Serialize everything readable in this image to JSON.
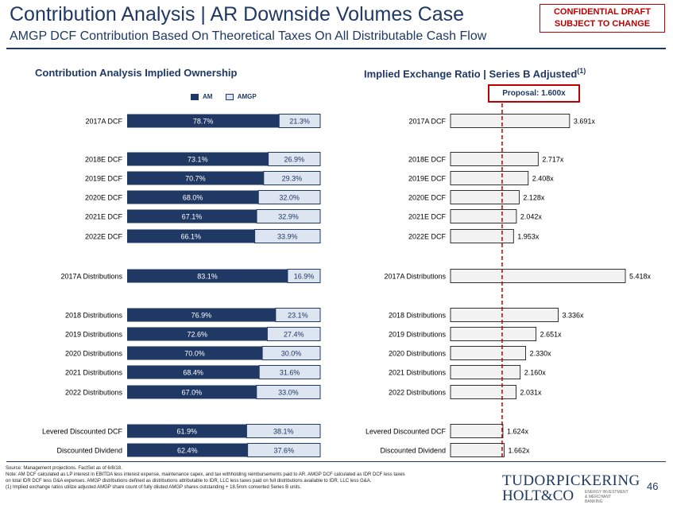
{
  "header": {
    "title": "Contribution Analysis | AR Downside Volumes Case",
    "subtitle": "AMGP DCF Contribution Based On Theoretical Taxes On All Distributable Cash Flow",
    "confidential_line1": "CONFIDENTIAL DRAFT",
    "confidential_line2": "SUBJECT TO CHANGE"
  },
  "left_section_title": "Contribution Analysis Implied Ownership",
  "right_section_title": "Implied Exchange Ratio | Series B Adjusted",
  "right_section_footnote_marker": "(1)",
  "proposal_label": "Proposal: 1.600x",
  "legend": {
    "am": "AM",
    "amgp": "AMGP"
  },
  "colors": {
    "navy": "#1f3864",
    "light": "#dde5f0",
    "grey_bar": "#f2f2f2",
    "red": "#c00000"
  },
  "chart_data": [
    {
      "type": "bar",
      "stacked": true,
      "orientation": "horizontal",
      "title": "Contribution Analysis Implied Ownership",
      "categories": [
        "2017A DCF",
        "2018E DCF",
        "2019E DCF",
        "2020E DCF",
        "2021E DCF",
        "2022E DCF",
        "2017A Distributions",
        "2018 Distributions",
        "2019 Distributions",
        "2020 Distributions",
        "2021 Distributions",
        "2022 Distributions",
        "Levered Discounted DCF",
        "Discounted Dividend"
      ],
      "series": [
        {
          "name": "AM",
          "values": [
            78.7,
            73.1,
            70.7,
            68.0,
            67.1,
            66.1,
            83.1,
            76.9,
            72.6,
            70.0,
            68.4,
            67.0,
            61.9,
            62.4
          ],
          "labels": [
            "78.7%",
            "73.1%",
            "70.7%",
            "68.0%",
            "67.1%",
            "66.1%",
            "83.1%",
            "76.9%",
            "72.6%",
            "70.0%",
            "68.4%",
            "67.0%",
            "61.9%",
            "62.4%"
          ]
        },
        {
          "name": "AMGP",
          "values": [
            21.3,
            26.9,
            29.3,
            32.0,
            32.9,
            33.9,
            16.9,
            23.1,
            27.4,
            30.0,
            31.6,
            33.0,
            38.1,
            37.6
          ],
          "labels": [
            "21.3%",
            "26.9%",
            "29.3%",
            "32.0%",
            "32.9%",
            "33.9%",
            "16.9%",
            "23.1%",
            "27.4%",
            "30.0%",
            "31.6%",
            "33.0%",
            "38.1%",
            "37.6%"
          ]
        }
      ],
      "xlim": [
        0,
        100
      ],
      "legend_position": "top"
    },
    {
      "type": "bar",
      "orientation": "horizontal",
      "title": "Implied Exchange Ratio | Series B Adjusted",
      "categories": [
        "2017A DCF",
        "2018E DCF",
        "2019E DCF",
        "2020E DCF",
        "2021E DCF",
        "2022E DCF",
        "2017A Distributions",
        "2018 Distributions",
        "2019 Distributions",
        "2020 Distributions",
        "2021 Distributions",
        "2022 Distributions",
        "Levered Discounted DCF",
        "Discounted Dividend"
      ],
      "values": [
        3.691,
        2.717,
        2.408,
        2.128,
        2.042,
        1.953,
        5.418,
        3.336,
        2.651,
        2.33,
        2.16,
        2.031,
        1.624,
        1.662
      ],
      "labels": [
        "3.691x",
        "2.717x",
        "2.408x",
        "2.128x",
        "2.042x",
        "1.953x",
        "5.418x",
        "3.336x",
        "2.651x",
        "2.330x",
        "2.160x",
        "2.031x",
        "1.624x",
        "1.662x"
      ],
      "reference_line": {
        "value": 1.6
      },
      "xlim": [
        0,
        5.418
      ]
    }
  ],
  "footer": {
    "source": "Source: Management projections. FactSet as of 6/8/18.",
    "note_line1": "Note: AM DCF calculated as LP interest in EBITDA less interest expense, maintenance capex, and tax withholding reimbursements paid to AR. AMGP DCF calculated as IDR DCF less taxes",
    "note_line2": "on total IDR DCF less G&A expenses. AMGP distributions defined as distributions attributable to IDR, LLC less taxes paid on full distributions available to IDR, LLC less G&A.",
    "note_line3": "(1)      Implied exchange ratios utilize adjusted AMGP share count of fully diluted AMGP shares outstanding + 18.5mm converted Series B units.",
    "logo_line1": "TUDORPICKERING",
    "logo_line2": "HOLT&CO",
    "logo_tagline": "ENERGY INVESTMENT & MERCHANT BANKING",
    "page_number": "46"
  }
}
